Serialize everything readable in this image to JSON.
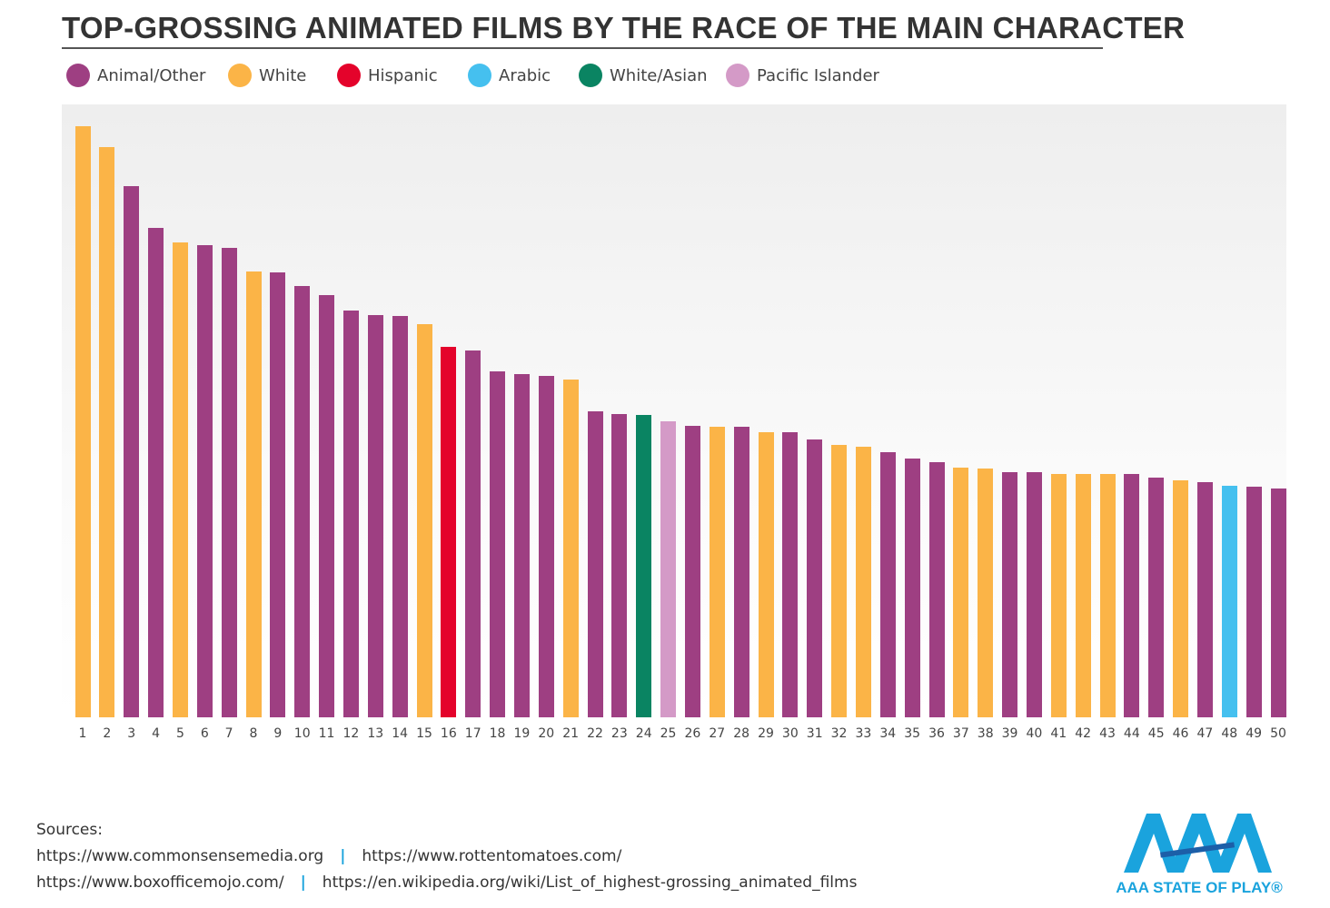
{
  "chart_data": {
    "type": "bar",
    "title": "TOP-GROSSING ANIMATED FILMS BY THE RACE OF THE MAIN CHARACTER",
    "xlabel": "",
    "ylabel": "",
    "value_note_units": "relative bar height, rank 1 = 100 (no y-axis printed)",
    "grid": false,
    "legend_placement": "top-left",
    "legend": [
      {
        "name": "Animal/Other",
        "color": "#9e3f82"
      },
      {
        "name": "White",
        "color": "#fbb447"
      },
      {
        "name": "Hispanic",
        "color": "#e4032b"
      },
      {
        "name": "Arabic",
        "color": "#45c0ef"
      },
      {
        "name": "White/Asian",
        "color": "#0a8462"
      },
      {
        "name": "Pacific Islander",
        "color": "#d49ac7"
      }
    ],
    "categories": [
      "1",
      "2",
      "3",
      "4",
      "5",
      "6",
      "7",
      "8",
      "9",
      "10",
      "11",
      "12",
      "13",
      "14",
      "15",
      "16",
      "17",
      "18",
      "19",
      "20",
      "21",
      "22",
      "23",
      "24",
      "25",
      "26",
      "27",
      "28",
      "29",
      "30",
      "31",
      "32",
      "33",
      "34",
      "35",
      "36",
      "37",
      "38",
      "39",
      "40",
      "41",
      "42",
      "43",
      "44",
      "45",
      "46",
      "47",
      "48",
      "49",
      "50"
    ],
    "values": [
      100,
      96.5,
      89.9,
      82.8,
      80.3,
      79.9,
      79.4,
      75.4,
      75.3,
      73.0,
      71.4,
      68.8,
      68.0,
      67.9,
      66.5,
      62.7,
      62.1,
      58.5,
      58.1,
      57.8,
      57.1,
      51.8,
      51.3,
      51.2,
      50.1,
      49.3,
      49.2,
      49.2,
      48.2,
      48.2,
      47.0,
      46.1,
      45.8,
      44.9,
      43.8,
      43.2,
      42.2,
      42.1,
      41.5,
      41.5,
      41.2,
      41.2,
      41.2,
      41.2,
      40.6,
      40.1,
      39.8,
      39.2,
      39.0,
      38.7
    ],
    "groups": [
      "White",
      "White",
      "Animal/Other",
      "Animal/Other",
      "White",
      "Animal/Other",
      "Animal/Other",
      "White",
      "Animal/Other",
      "Animal/Other",
      "Animal/Other",
      "Animal/Other",
      "Animal/Other",
      "Animal/Other",
      "White",
      "Hispanic",
      "Animal/Other",
      "Animal/Other",
      "Animal/Other",
      "Animal/Other",
      "White",
      "Animal/Other",
      "Animal/Other",
      "White/Asian",
      "Pacific Islander",
      "Animal/Other",
      "White",
      "Animal/Other",
      "White",
      "Animal/Other",
      "Animal/Other",
      "White",
      "White",
      "Animal/Other",
      "Animal/Other",
      "Animal/Other",
      "White",
      "White",
      "Animal/Other",
      "Animal/Other",
      "White",
      "White",
      "White",
      "Animal/Other",
      "Animal/Other",
      "White",
      "Animal/Other",
      "Arabic",
      "Animal/Other",
      "Animal/Other"
    ],
    "ylim": [
      0,
      100
    ]
  },
  "sources": {
    "label": "Sources:",
    "line1": [
      "https://www.commonsensemedia.org",
      "https://www.rottentomatoes.com/"
    ],
    "line2": [
      "https://www.boxofficemojo.com/",
      "https://en.wikipedia.org/wiki/List_of_highest-grossing_animated_films"
    ],
    "separator": "|"
  },
  "logo": {
    "text": "AAA STATE OF PLAY",
    "color": "#1aa3dd"
  }
}
